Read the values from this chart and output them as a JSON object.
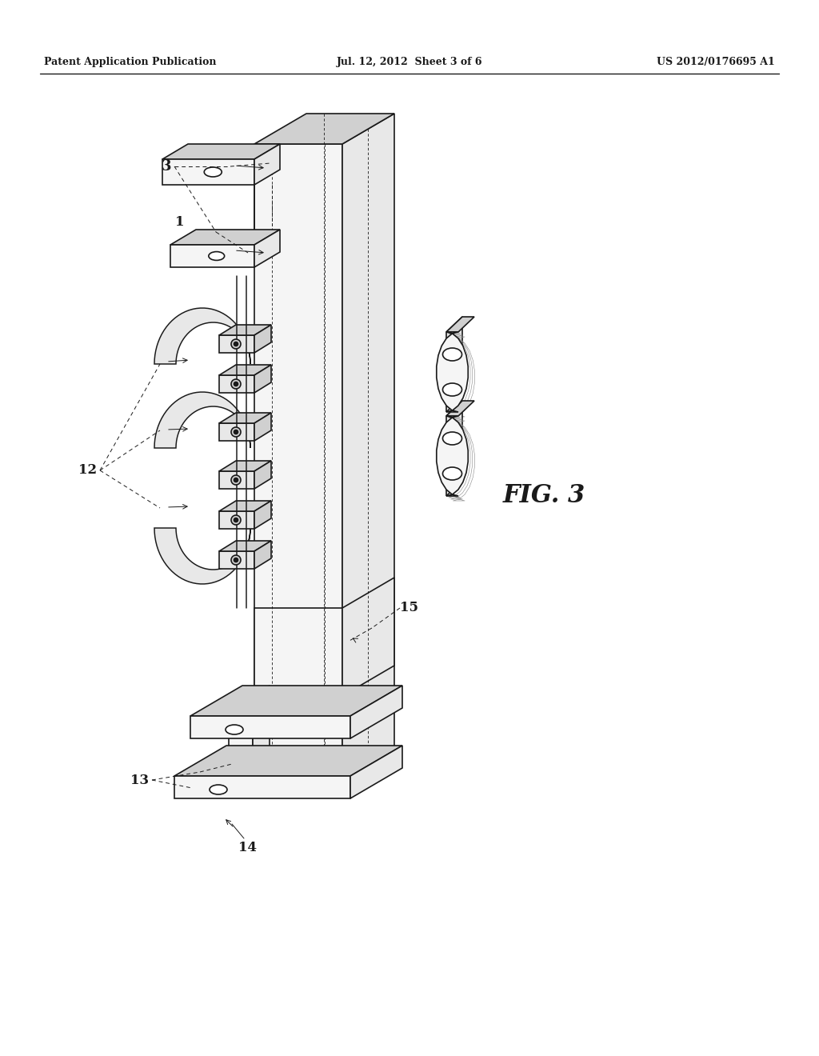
{
  "background_color": "#ffffff",
  "header_left": "Patent Application Publication",
  "header_center": "Jul. 12, 2012  Sheet 3 of 6",
  "header_right": "US 2012/0176695 A1",
  "figure_label": "FIG. 3",
  "line_color": "#1a1a1a",
  "fill_light": "#f5f5f5",
  "fill_mid": "#e8e8e8",
  "fill_dark": "#d0d0d0",
  "fill_white": "#ffffff",
  "ann_color": "#1a1a1a",
  "stroke_width": 1.2,
  "dashed_lw": 0.7
}
